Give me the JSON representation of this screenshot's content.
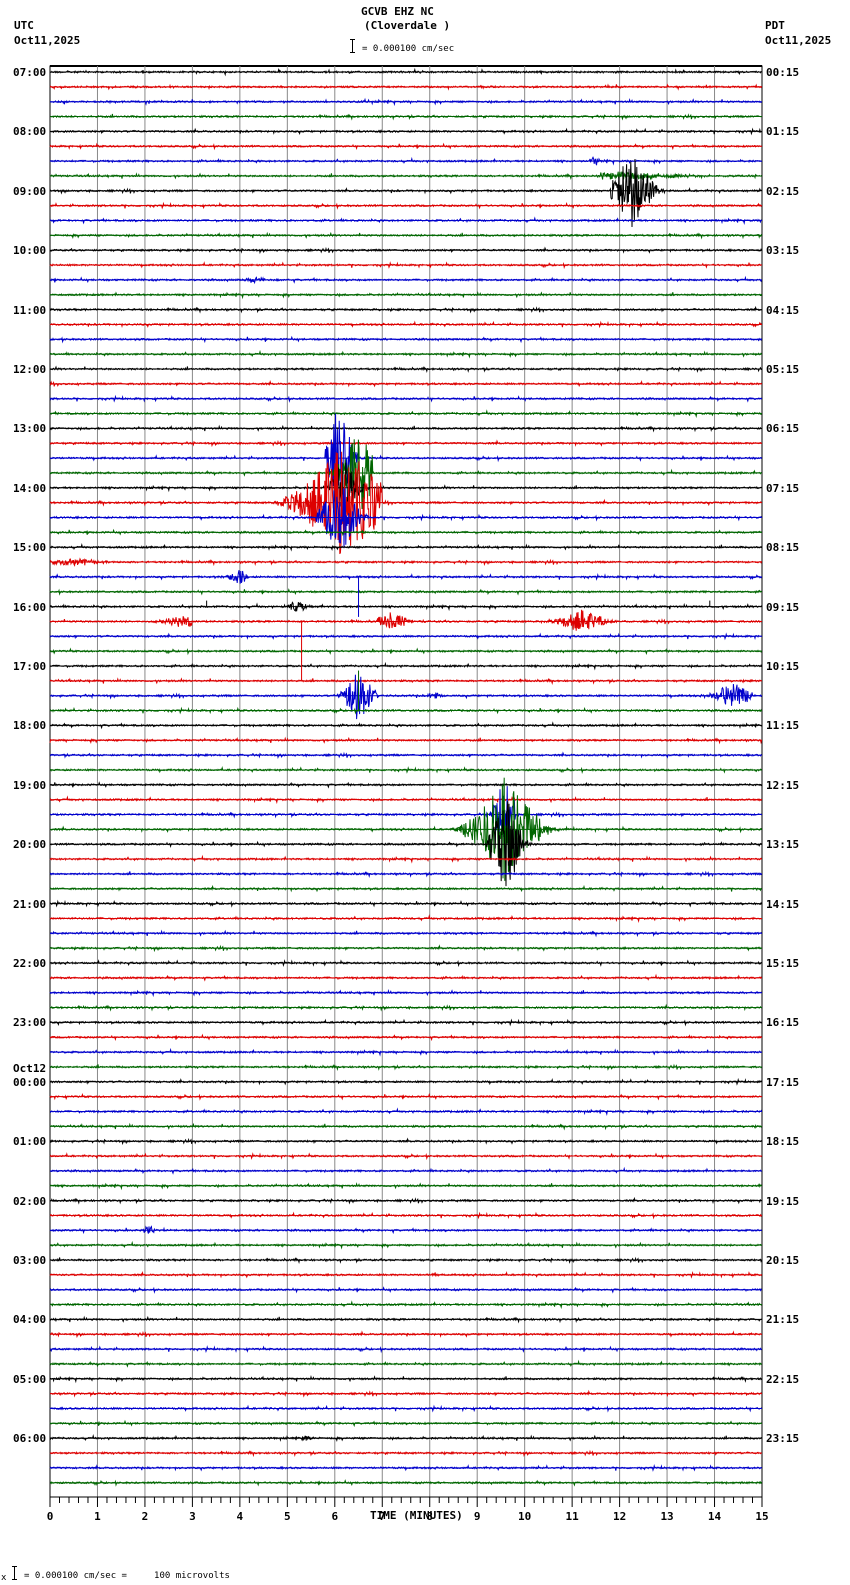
{
  "header": {
    "station": "GCVB EHZ NC",
    "location": "(Cloverdale )",
    "scale_text": "= 0.000100 cm/sec",
    "left_tz": "UTC",
    "left_date": "Oct11,2025",
    "right_tz": "PDT",
    "right_date": "Oct11,2025"
  },
  "footer": {
    "scale_text": "= 0.000100 cm/sec =     100 microvolts",
    "scale_prefix": "x"
  },
  "chart_data": {
    "type": "line",
    "title": "GCVB EHZ NC (Cloverdale )",
    "subtitle": "= 0.000100 cm/sec",
    "xlabel": "TIME (MINUTES)",
    "ylabel": "",
    "xlim": [
      0,
      15
    ],
    "x_ticks": [
      "0",
      "1",
      "2",
      "3",
      "4",
      "5",
      "6",
      "7",
      "8",
      "9",
      "10",
      "11",
      "12",
      "13",
      "14",
      "15"
    ],
    "minor_ticks_per_minute": 5,
    "grid": "vertical lines every minute",
    "trace_colors": [
      "#000000",
      "#dd0000",
      "#0000cc",
      "#006600"
    ],
    "traces_per_hour": 4,
    "trace_interval_minutes": 15,
    "left_labels": [
      {
        "row": 0,
        "text": "07:00"
      },
      {
        "row": 4,
        "text": "08:00"
      },
      {
        "row": 8,
        "text": "09:00"
      },
      {
        "row": 12,
        "text": "10:00"
      },
      {
        "row": 16,
        "text": "11:00"
      },
      {
        "row": 20,
        "text": "12:00"
      },
      {
        "row": 24,
        "text": "13:00"
      },
      {
        "row": 28,
        "text": "14:00"
      },
      {
        "row": 32,
        "text": "15:00"
      },
      {
        "row": 36,
        "text": "16:00"
      },
      {
        "row": 40,
        "text": "17:00"
      },
      {
        "row": 44,
        "text": "18:00"
      },
      {
        "row": 48,
        "text": "19:00"
      },
      {
        "row": 52,
        "text": "20:00"
      },
      {
        "row": 56,
        "text": "21:00"
      },
      {
        "row": 60,
        "text": "22:00"
      },
      {
        "row": 64,
        "text": "23:00"
      },
      {
        "row": 68,
        "text": "00:00",
        "date": "Oct12"
      },
      {
        "row": 72,
        "text": "01:00"
      },
      {
        "row": 76,
        "text": "02:00"
      },
      {
        "row": 80,
        "text": "03:00"
      },
      {
        "row": 84,
        "text": "04:00"
      },
      {
        "row": 88,
        "text": "05:00"
      },
      {
        "row": 92,
        "text": "06:00"
      }
    ],
    "right_labels": [
      {
        "row": 0,
        "text": "00:15"
      },
      {
        "row": 4,
        "text": "01:15"
      },
      {
        "row": 8,
        "text": "02:15"
      },
      {
        "row": 12,
        "text": "03:15"
      },
      {
        "row": 16,
        "text": "04:15"
      },
      {
        "row": 20,
        "text": "05:15"
      },
      {
        "row": 24,
        "text": "06:15"
      },
      {
        "row": 28,
        "text": "07:15"
      },
      {
        "row": 32,
        "text": "08:15"
      },
      {
        "row": 36,
        "text": "09:15"
      },
      {
        "row": 40,
        "text": "10:15"
      },
      {
        "row": 44,
        "text": "11:15"
      },
      {
        "row": 48,
        "text": "12:15"
      },
      {
        "row": 52,
        "text": "13:15"
      },
      {
        "row": 56,
        "text": "14:15"
      },
      {
        "row": 60,
        "text": "15:15"
      },
      {
        "row": 64,
        "text": "16:15"
      },
      {
        "row": 68,
        "text": "17:15"
      },
      {
        "row": 72,
        "text": "18:15"
      },
      {
        "row": 76,
        "text": "19:15"
      },
      {
        "row": 80,
        "text": "20:15"
      },
      {
        "row": 84,
        "text": "21:15"
      },
      {
        "row": 88,
        "text": "22:15"
      },
      {
        "row": 92,
        "text": "23:15"
      }
    ],
    "num_traces": 96,
    "events": [
      {
        "row": 6,
        "start": 11.3,
        "end": 11.6,
        "peak": 11.45,
        "amp": 6
      },
      {
        "row": 7,
        "start": 11.6,
        "end": 14.6,
        "peak": 12.0,
        "amp": 4
      },
      {
        "row": 8,
        "start": 11.8,
        "end": 13.0,
        "peak": 12.25,
        "amp": 40
      },
      {
        "row": 14,
        "start": 4.0,
        "end": 4.7,
        "peak": 4.3,
        "amp": 3
      },
      {
        "row": 26,
        "start": 5.8,
        "end": 6.6,
        "peak": 6.1,
        "amp": 60
      },
      {
        "row": 27,
        "start": 5.8,
        "end": 6.8,
        "peak": 6.5,
        "amp": 45
      },
      {
        "row": 28,
        "start": 5.8,
        "end": 6.8,
        "peak": 6.2,
        "amp": 30
      },
      {
        "row": 29,
        "start": 4.6,
        "end": 7.0,
        "peak": 6.2,
        "amp": 60
      },
      {
        "row": 30,
        "start": 5.6,
        "end": 6.8,
        "peak": 6.1,
        "amp": 40
      },
      {
        "row": 33,
        "start": 0.0,
        "end": 1.5,
        "peak": 0.5,
        "amp": 4
      },
      {
        "row": 34,
        "start": 3.5,
        "end": 4.2,
        "peak": 4.0,
        "amp": 7
      },
      {
        "row": 36,
        "start": 4.8,
        "end": 5.5,
        "peak": 5.2,
        "amp": 6
      },
      {
        "row": 37,
        "start": 6.9,
        "end": 7.8,
        "peak": 7.2,
        "amp": 10
      },
      {
        "row": 37,
        "start": 10.3,
        "end": 12.0,
        "peak": 11.2,
        "amp": 12
      },
      {
        "row": 37,
        "start": 2.0,
        "end": 3.0,
        "peak": 2.8,
        "amp": 6
      },
      {
        "row": 42,
        "start": 6.0,
        "end": 7.0,
        "peak": 6.5,
        "amp": 30
      },
      {
        "row": 42,
        "start": 13.7,
        "end": 14.8,
        "peak": 14.4,
        "amp": 14
      },
      {
        "row": 42,
        "start": 7.9,
        "end": 8.3,
        "peak": 8.1,
        "amp": 5
      },
      {
        "row": 50,
        "start": 9.2,
        "end": 9.8,
        "peak": 9.6,
        "amp": 50
      },
      {
        "row": 51,
        "start": 8.5,
        "end": 10.8,
        "peak": 9.6,
        "amp": 55
      },
      {
        "row": 52,
        "start": 9.2,
        "end": 10.2,
        "peak": 9.6,
        "amp": 50
      },
      {
        "row": 78,
        "start": 2.0,
        "end": 2.3,
        "peak": 2.1,
        "amp": 6
      },
      {
        "row": 81,
        "start": 8.0,
        "end": 8.3,
        "peak": 8.1,
        "amp": 2
      },
      {
        "row": 92,
        "start": 5.3,
        "end": 5.6,
        "peak": 5.4,
        "amp": 3
      }
    ],
    "spikes": [
      {
        "row": 37,
        "x": 5.3,
        "dy": 40,
        "color_override": "#dd0000"
      },
      {
        "row": 41,
        "x": 5.3,
        "dy": -20
      },
      {
        "row": 43,
        "x": 6.5,
        "dy": -40
      },
      {
        "row": 34,
        "x": 6.5,
        "dy": 40
      },
      {
        "row": 36,
        "x": 3.3,
        "dy": -6
      },
      {
        "row": 36,
        "x": 13.9,
        "dy": -6
      }
    ]
  }
}
